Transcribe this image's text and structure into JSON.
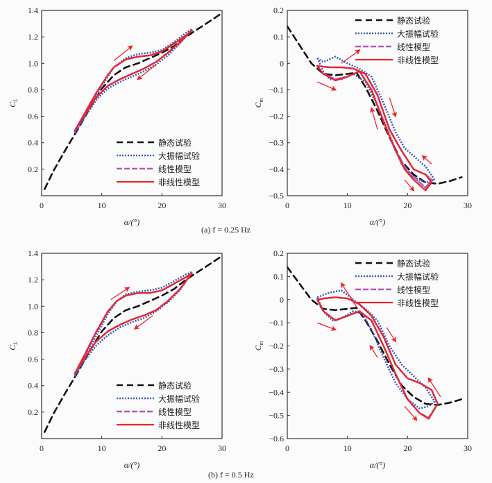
{
  "captions": [
    "(a)  f = 0.25 Hz",
    "(b) f = 0.5 Hz"
  ],
  "legend_labels": [
    "静态试验",
    "大振幅试验",
    "线性模型",
    "非线性模型"
  ],
  "colors": {
    "static": "#111111",
    "experiment": "#3a5bb8",
    "linear": "#b05ab8",
    "nonlinear": "#e8262b",
    "arrow": "#e8262b"
  },
  "chart_data": [
    {
      "id": "a-CL",
      "type": "line",
      "ylabel": "C_L",
      "xlabel": "α/(°)",
      "xlim": [
        0,
        30
      ],
      "ylim": [
        0,
        1.4
      ],
      "xticks": [
        0,
        10,
        20,
        30
      ],
      "yticks": [
        0.2,
        0.4,
        0.6,
        0.8,
        1.0,
        1.2,
        1.4
      ],
      "legend": "bottom-right",
      "series": [
        {
          "name": "静态试验",
          "x": [
            0.5,
            2,
            4,
            6,
            8,
            10,
            12,
            14,
            16,
            18,
            20,
            22,
            24,
            26,
            28,
            30
          ],
          "y": [
            0.05,
            0.19,
            0.35,
            0.5,
            0.66,
            0.81,
            0.91,
            0.97,
            1.0,
            1.04,
            1.08,
            1.13,
            1.2,
            1.26,
            1.32,
            1.38
          ]
        },
        {
          "name": "大振幅试验",
          "x": [
            5.5,
            7,
            9,
            11,
            12,
            14,
            16,
            18,
            20,
            22,
            24,
            25,
            23,
            21,
            19,
            17,
            15,
            13,
            11,
            9,
            7,
            5.5
          ],
          "y": [
            0.47,
            0.59,
            0.75,
            0.9,
            0.97,
            1.04,
            1.07,
            1.08,
            1.1,
            1.16,
            1.23,
            1.26,
            1.15,
            1.06,
            0.99,
            0.94,
            0.9,
            0.86,
            0.81,
            0.72,
            0.58,
            0.47
          ]
        },
        {
          "name": "线性模型",
          "x": [
            5.5,
            7,
            9,
            11,
            12,
            14,
            16,
            18,
            20,
            22,
            24,
            25,
            23,
            21,
            19,
            17,
            15,
            13,
            11,
            9,
            7,
            5.5
          ],
          "y": [
            0.49,
            0.61,
            0.77,
            0.91,
            0.97,
            1.03,
            1.05,
            1.06,
            1.09,
            1.15,
            1.21,
            1.25,
            1.16,
            1.08,
            1.01,
            0.96,
            0.92,
            0.88,
            0.83,
            0.74,
            0.6,
            0.49
          ]
        },
        {
          "name": "非线性模型",
          "x": [
            5.5,
            7,
            9,
            11,
            12,
            14,
            16,
            18,
            20,
            22,
            24,
            25,
            23,
            21,
            19,
            17,
            15,
            13,
            11,
            9,
            7,
            5.5
          ],
          "y": [
            0.49,
            0.61,
            0.77,
            0.91,
            0.97,
            1.03,
            1.05,
            1.06,
            1.09,
            1.15,
            1.21,
            1.25,
            1.16,
            1.08,
            1.01,
            0.96,
            0.92,
            0.88,
            0.83,
            0.74,
            0.6,
            0.49
          ]
        }
      ],
      "arrows": [
        {
          "from": [
            12,
            1.02
          ],
          "to": [
            15,
            1.13
          ]
        },
        {
          "from": [
            19,
            0.99
          ],
          "to": [
            16,
            0.88
          ]
        }
      ]
    },
    {
      "id": "a-Cm",
      "type": "line",
      "ylabel": "C_m",
      "xlabel": "α/(°)",
      "xlim": [
        0,
        30
      ],
      "ylim": [
        -0.5,
        0.2
      ],
      "xticks": [
        0,
        10,
        20,
        30
      ],
      "yticks": [
        -0.5,
        -0.4,
        -0.3,
        -0.2,
        -0.1,
        0,
        0.1,
        0.2
      ],
      "legend": "top-right",
      "series": [
        {
          "name": "静态试验",
          "x": [
            0,
            2,
            4,
            6,
            8,
            10,
            11.5,
            13,
            15,
            17,
            19,
            21,
            23,
            25,
            27,
            29
          ],
          "y": [
            0.14,
            0.07,
            0.0,
            -0.04,
            -0.045,
            -0.04,
            -0.035,
            -0.09,
            -0.18,
            -0.28,
            -0.37,
            -0.42,
            -0.45,
            -0.455,
            -0.445,
            -0.43
          ]
        },
        {
          "name": "大振幅试验",
          "x": [
            5,
            6,
            7,
            9,
            11,
            13,
            15,
            17,
            19,
            21,
            23,
            24.5,
            23,
            21,
            19.5,
            18,
            16,
            14,
            12,
            10,
            8,
            6,
            5
          ],
          "y": [
            0.02,
            -0.03,
            -0.06,
            -0.06,
            -0.04,
            -0.07,
            -0.16,
            -0.27,
            -0.38,
            -0.43,
            -0.45,
            -0.44,
            -0.39,
            -0.35,
            -0.32,
            -0.26,
            -0.15,
            -0.05,
            -0.02,
            0.0,
            0.025,
            0.005,
            0.02
          ]
        },
        {
          "name": "线性模型",
          "x": [
            5,
            6,
            8,
            10,
            12,
            14,
            16,
            18,
            19.5,
            21,
            23,
            24,
            23,
            21,
            19,
            17,
            15,
            13,
            11,
            9,
            7,
            5
          ],
          "y": [
            -0.01,
            -0.04,
            -0.06,
            -0.05,
            -0.03,
            -0.1,
            -0.22,
            -0.33,
            -0.39,
            -0.43,
            -0.47,
            -0.44,
            -0.42,
            -0.4,
            -0.33,
            -0.25,
            -0.12,
            -0.04,
            -0.02,
            -0.015,
            -0.015,
            -0.01
          ]
        },
        {
          "name": "非线性模型",
          "x": [
            5,
            6,
            8,
            10,
            12,
            14,
            16,
            18,
            19.5,
            21,
            23,
            24,
            23,
            21,
            19,
            17,
            15,
            13,
            11,
            9,
            7,
            5
          ],
          "y": [
            -0.01,
            -0.04,
            -0.065,
            -0.05,
            -0.03,
            -0.1,
            -0.22,
            -0.33,
            -0.4,
            -0.44,
            -0.48,
            -0.45,
            -0.42,
            -0.4,
            -0.33,
            -0.25,
            -0.12,
            -0.04,
            -0.02,
            -0.015,
            -0.015,
            -0.01
          ]
        }
      ],
      "arrows": [
        {
          "from": [
            9,
            0.0
          ],
          "to": [
            12,
            0.05
          ]
        },
        {
          "from": [
            5,
            -0.07
          ],
          "to": [
            8,
            -0.1
          ]
        },
        {
          "from": [
            17,
            -0.13
          ],
          "to": [
            18,
            -0.2
          ]
        },
        {
          "from": [
            15,
            -0.25
          ],
          "to": [
            14,
            -0.17
          ]
        },
        {
          "from": [
            24,
            -0.38
          ],
          "to": [
            22.5,
            -0.35
          ]
        },
        {
          "from": [
            19.5,
            -0.44
          ],
          "to": [
            21,
            -0.48
          ]
        }
      ]
    },
    {
      "id": "b-CL",
      "type": "line",
      "ylabel": "C_L",
      "xlabel": "α/(°)",
      "xlim": [
        0,
        30
      ],
      "ylim": [
        0,
        1.4
      ],
      "xticks": [
        0,
        10,
        20,
        30
      ],
      "yticks": [
        0.2,
        0.4,
        0.6,
        0.8,
        1.0,
        1.2,
        1.4
      ],
      "legend": "bottom-right",
      "series": [
        {
          "name": "静态试验",
          "x": [
            0.5,
            2,
            4,
            6,
            8,
            10,
            12,
            14,
            16,
            18,
            20,
            22,
            24,
            26,
            28,
            30
          ],
          "y": [
            0.05,
            0.19,
            0.35,
            0.5,
            0.66,
            0.81,
            0.91,
            0.97,
            1.0,
            1.04,
            1.08,
            1.13,
            1.2,
            1.26,
            1.32,
            1.38
          ]
        },
        {
          "name": "大振幅试验",
          "x": [
            5.5,
            7,
            9,
            11,
            12.5,
            14,
            16,
            18,
            20,
            22,
            24,
            25,
            23,
            21,
            19,
            17,
            15,
            13,
            11,
            9,
            7,
            5.5
          ],
          "y": [
            0.47,
            0.59,
            0.77,
            0.94,
            1.04,
            1.09,
            1.11,
            1.12,
            1.14,
            1.19,
            1.24,
            1.26,
            1.12,
            1.03,
            0.96,
            0.91,
            0.88,
            0.84,
            0.78,
            0.7,
            0.58,
            0.47
          ]
        },
        {
          "name": "线性模型",
          "x": [
            5.5,
            7,
            9,
            11,
            12.5,
            14,
            16,
            18,
            20,
            22,
            24,
            25,
            23,
            21,
            19,
            17,
            15,
            13,
            11,
            9,
            7,
            5.5
          ],
          "y": [
            0.49,
            0.62,
            0.8,
            0.96,
            1.04,
            1.08,
            1.1,
            1.1,
            1.12,
            1.17,
            1.22,
            1.25,
            1.13,
            1.04,
            0.97,
            0.93,
            0.9,
            0.86,
            0.81,
            0.73,
            0.6,
            0.49
          ]
        },
        {
          "name": "非线性模型",
          "x": [
            5.5,
            7,
            9,
            11,
            12.5,
            14,
            16,
            18,
            20,
            22,
            24,
            25,
            23,
            21,
            19,
            17,
            15,
            13,
            11,
            9,
            7,
            5.5
          ],
          "y": [
            0.49,
            0.62,
            0.8,
            0.96,
            1.04,
            1.08,
            1.1,
            1.1,
            1.12,
            1.17,
            1.22,
            1.25,
            1.13,
            1.04,
            0.97,
            0.93,
            0.9,
            0.86,
            0.81,
            0.73,
            0.6,
            0.49
          ]
        }
      ],
      "arrows": [
        {
          "from": [
            11.5,
            1.05
          ],
          "to": [
            14.5,
            1.14
          ]
        },
        {
          "from": [
            18.5,
            0.93
          ],
          "to": [
            15.5,
            0.83
          ]
        }
      ]
    },
    {
      "id": "b-Cm",
      "type": "line",
      "ylabel": "C_m",
      "xlabel": "α/(°)",
      "xlim": [
        0,
        30
      ],
      "ylim": [
        -0.6,
        0.2
      ],
      "xticks": [
        0,
        10,
        20,
        30
      ],
      "yticks": [
        -0.6,
        -0.5,
        -0.4,
        -0.3,
        -0.2,
        -0.1,
        0,
        0.1,
        0.2
      ],
      "legend": "top-right",
      "series": [
        {
          "name": "静态试验",
          "x": [
            0,
            2,
            4,
            6,
            8,
            10,
            11.5,
            13,
            15,
            17,
            19,
            21,
            23,
            25,
            27,
            29
          ],
          "y": [
            0.14,
            0.07,
            0.0,
            -0.04,
            -0.045,
            -0.04,
            -0.035,
            -0.09,
            -0.18,
            -0.28,
            -0.37,
            -0.42,
            -0.45,
            -0.455,
            -0.445,
            -0.43
          ]
        },
        {
          "name": "大振幅试验",
          "x": [
            5,
            6,
            7.5,
            9,
            11,
            12.5,
            14,
            16,
            18,
            20,
            22,
            23.5,
            24.5,
            23,
            21,
            19,
            17,
            15,
            13,
            11,
            9,
            7,
            5
          ],
          "y": [
            0.01,
            -0.05,
            -0.09,
            -0.08,
            -0.05,
            -0.06,
            -0.13,
            -0.25,
            -0.36,
            -0.43,
            -0.47,
            -0.46,
            -0.44,
            -0.38,
            -0.33,
            -0.28,
            -0.2,
            -0.09,
            -0.04,
            0.0,
            0.04,
            0.03,
            0.01
          ]
        },
        {
          "name": "线性模型",
          "x": [
            5,
            6,
            8,
            10,
            12,
            14,
            16,
            18,
            20,
            22,
            23.5,
            25,
            24,
            22,
            20,
            18,
            16,
            14,
            12,
            10,
            8,
            6,
            5
          ],
          "y": [
            0.0,
            -0.05,
            -0.09,
            -0.07,
            -0.05,
            -0.09,
            -0.2,
            -0.32,
            -0.43,
            -0.49,
            -0.51,
            -0.45,
            -0.39,
            -0.36,
            -0.34,
            -0.28,
            -0.16,
            -0.07,
            -0.02,
            0.005,
            0.01,
            0.005,
            0.0
          ]
        },
        {
          "name": "非线性模型",
          "x": [
            5,
            6,
            8,
            10,
            12,
            14,
            16,
            18,
            20,
            22,
            23.5,
            25,
            24,
            22,
            20,
            18,
            16,
            14,
            12,
            10,
            8,
            6,
            5
          ],
          "y": [
            0.0,
            -0.05,
            -0.09,
            -0.07,
            -0.05,
            -0.09,
            -0.2,
            -0.32,
            -0.43,
            -0.49,
            -0.515,
            -0.45,
            -0.39,
            -0.36,
            -0.34,
            -0.28,
            -0.16,
            -0.07,
            -0.02,
            0.005,
            0.01,
            0.005,
            0.0
          ]
        }
      ],
      "arrows": [
        {
          "from": [
            11.5,
            -0.03
          ],
          "to": [
            9,
            0.07
          ]
        },
        {
          "from": [
            5,
            -0.1
          ],
          "to": [
            8,
            -0.13
          ]
        },
        {
          "from": [
            16.5,
            -0.12
          ],
          "to": [
            18,
            -0.18
          ]
        },
        {
          "from": [
            15,
            -0.25
          ],
          "to": [
            13.8,
            -0.2
          ]
        },
        {
          "from": [
            25.5,
            -0.42
          ],
          "to": [
            23.5,
            -0.34
          ]
        },
        {
          "from": [
            19.5,
            -0.46
          ],
          "to": [
            21.5,
            -0.52
          ]
        }
      ]
    }
  ]
}
